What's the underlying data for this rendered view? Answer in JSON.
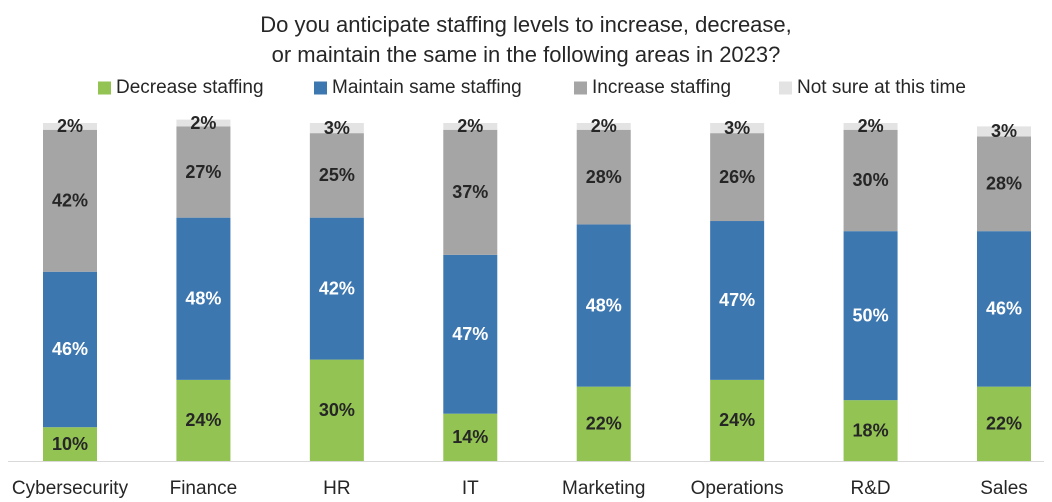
{
  "chart_data": {
    "type": "bar",
    "stacked": true,
    "title_lines": [
      "Do you anticipate staffing levels to increase, decrease,",
      "or maintain the same in the following areas in 2023?"
    ],
    "categories": [
      "Cybersecurity",
      "Finance",
      "HR",
      "IT",
      "Marketing",
      "Operations",
      "R&D",
      "Sales"
    ],
    "series": [
      {
        "name": "Decrease staffing",
        "color": "#92c353",
        "label_color": "#262626",
        "values": [
          10,
          24,
          30,
          14,
          22,
          24,
          18,
          22
        ]
      },
      {
        "name": "Maintain same staffing",
        "color": "#3d77b0",
        "label_color": "#ffffff",
        "values": [
          46,
          48,
          42,
          47,
          48,
          47,
          50,
          46
        ]
      },
      {
        "name": "Increase staffing",
        "color": "#a5a5a5",
        "label_color": "#262626",
        "values": [
          42,
          27,
          25,
          37,
          28,
          26,
          30,
          28
        ]
      },
      {
        "name": "Not sure at this time",
        "color": "#e3e3e3",
        "label_color": "#262626",
        "values": [
          2,
          2,
          3,
          2,
          2,
          3,
          2,
          3
        ]
      }
    ],
    "value_suffix": "%",
    "ylim": [
      0,
      100
    ],
    "legend_position": "top",
    "grid": false
  }
}
